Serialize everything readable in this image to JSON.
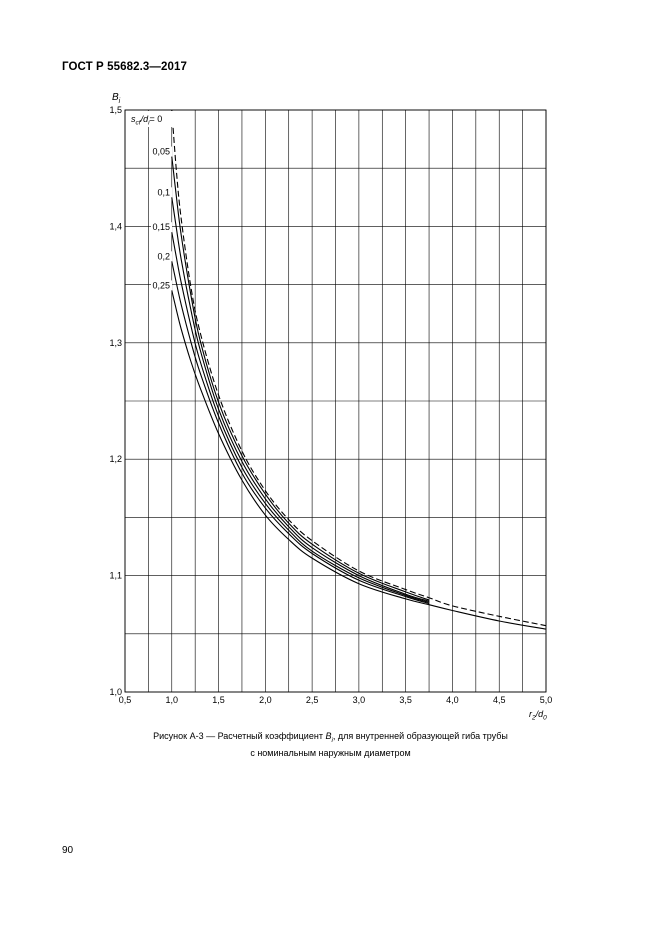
{
  "header": {
    "doc_number": "ГОСТ Р 55682.3—2017"
  },
  "caption": {
    "line1_before": "Рисунок А-3 — Расчетный коэффициент ",
    "symbol": "B",
    "symbol_sub": "i",
    "line1_after": ", для внутренней образующей гиба трубы",
    "line2": "с номинальным наружным диаметром"
  },
  "page_number": "90",
  "chart_data": {
    "type": "line",
    "title": "",
    "xlabel": {
      "main": "r",
      "sub1": "2",
      "sep": "/d",
      "sub2": "0"
    },
    "ylabel": {
      "main": "B",
      "sub": "i"
    },
    "xlim": [
      0.5,
      5.0
    ],
    "ylim": [
      1.0,
      1.5
    ],
    "x_ticks": [
      "0,5",
      "1,0",
      "1,5",
      "2,0",
      "2,5",
      "3,0",
      "3,5",
      "4,0",
      "4,5",
      "5,0"
    ],
    "y_ticks": [
      "1,0",
      "1,1",
      "1,2",
      "1,3",
      "1,4",
      "1,5"
    ],
    "grid": true,
    "legend_header": {
      "main": "s",
      "sub1": "cf",
      "sep": "/d",
      "sub2": "i",
      "eq": "= 0"
    },
    "series": [
      {
        "name": "0",
        "dashed": true,
        "x": [
          1.0,
          1.05,
          1.1,
          1.2,
          1.3,
          1.5,
          1.75,
          2.0,
          2.25,
          2.5,
          3.0,
          3.5,
          3.75,
          4.0,
          4.5,
          5.0
        ],
        "y": [
          1.5,
          1.447,
          1.407,
          1.35,
          1.31,
          1.255,
          1.207,
          1.173,
          1.148,
          1.13,
          1.104,
          1.088,
          1.081,
          1.074,
          1.065,
          1.057
        ]
      },
      {
        "name": "0,05",
        "dashed": false,
        "x": [
          1.0,
          1.05,
          1.1,
          1.2,
          1.3,
          1.5,
          1.75,
          2.0,
          2.25,
          2.5,
          3.0,
          3.5,
          3.75
        ],
        "y": [
          1.46,
          1.425,
          1.393,
          1.343,
          1.303,
          1.249,
          1.203,
          1.17,
          1.145,
          1.127,
          1.102,
          1.086,
          1.079
        ]
      },
      {
        "name": "0,1",
        "dashed": false,
        "x": [
          1.0,
          1.05,
          1.1,
          1.2,
          1.3,
          1.5,
          1.75,
          2.0,
          2.25,
          2.5,
          3.0,
          3.5,
          3.75
        ],
        "y": [
          1.425,
          1.398,
          1.372,
          1.33,
          1.295,
          1.243,
          1.198,
          1.166,
          1.142,
          1.124,
          1.1,
          1.084,
          1.078
        ]
      },
      {
        "name": "0,15",
        "dashed": false,
        "x": [
          1.0,
          1.05,
          1.1,
          1.2,
          1.3,
          1.5,
          1.75,
          2.0,
          2.25,
          2.5,
          3.0,
          3.5,
          3.75
        ],
        "y": [
          1.395,
          1.373,
          1.352,
          1.316,
          1.285,
          1.237,
          1.193,
          1.162,
          1.139,
          1.121,
          1.098,
          1.083,
          1.077
        ]
      },
      {
        "name": "0,2",
        "dashed": false,
        "x": [
          1.0,
          1.05,
          1.1,
          1.2,
          1.3,
          1.5,
          1.75,
          2.0,
          2.25,
          2.5,
          3.0,
          3.5,
          3.75
        ],
        "y": [
          1.37,
          1.351,
          1.333,
          1.302,
          1.275,
          1.231,
          1.188,
          1.158,
          1.136,
          1.119,
          1.096,
          1.082,
          1.076
        ]
      },
      {
        "name": "0,25",
        "dashed": false,
        "x": [
          1.0,
          1.05,
          1.1,
          1.2,
          1.3,
          1.5,
          1.75,
          2.0,
          2.25,
          2.5,
          3.0,
          3.5,
          3.75,
          4.0,
          4.5,
          5.0
        ],
        "y": [
          1.345,
          1.328,
          1.312,
          1.285,
          1.262,
          1.222,
          1.182,
          1.152,
          1.131,
          1.115,
          1.093,
          1.08,
          1.075,
          1.07,
          1.061,
          1.054
        ]
      }
    ]
  }
}
